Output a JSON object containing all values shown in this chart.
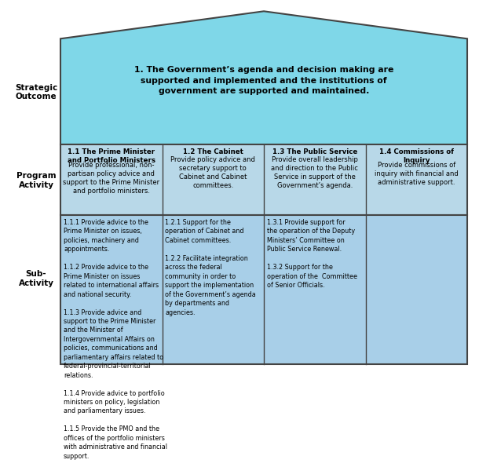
{
  "title": "1. The Government’s agenda and decision making are\nsupported and implemented and the institutions of\ngovernment are supported and maintained.",
  "label_strategic": "Strategic\nOutcome",
  "label_program": "Program\nActivity",
  "label_sub": "Sub-\nActivity",
  "bg_color": "#ffffff",
  "house_fill": "#7fd7e8",
  "program_header_fill": "#b8d8e8",
  "sub_activity_fill": "#a8cfe8",
  "border_color": "#444444",
  "program_headers": [
    {
      "bold": "1.1 The Prime Minister\nand Portfolio Ministers",
      "text": "Provide professional, non-\npartisan policy advice and\nsupport to the Prime Minister\nand portfolio ministers."
    },
    {
      "bold": "1.2 The Cabinet",
      "text": "Provide policy advice and\nsecretary support to\nCabinet and Cabinet\ncommittees."
    },
    {
      "bold": "1.3 The Public Service",
      "text": "Provide overall leadership\nand direction to the Public\nService in support of the\nGovernment’s agenda."
    },
    {
      "bold": "1.4 Commissions of\nInquiry",
      "text": "Provide commissions of\ninquiry with financial and\nadministrative support."
    }
  ],
  "sub_activities": [
    "1.1.1 Provide advice to the\nPrime Minister on issues,\npolicies, machinery and\nappointments.\n\n1.1.2 Provide advice to the\nPrime Minister on issues\nrelated to international affairs\nand national security.\n\n1.1.3 Provide advice and\nsupport to the Prime Minister\nand the Minister of\nIntergovernmental Affairs on\npolicies, communications and\nparliamentary affairs related to\nfederal-provincial-territorial\nrelations.\n\n1.1.4 Provide advice to portfolio\nministers on policy, legislation\nand parliamentary issues.\n\n1.1.5 Provide the PMO and the\noffices of the portfolio ministers\nwith administrative and financial\nsupport.",
    "1.2.1 Support for the\noperation of Cabinet and\nCabinet committees.\n\n1.2.2 Facilitate integration\nacross the federal\ncommunity in order to\nsupport the implementation\nof the Government’s agenda\nby departments and\nagencies.",
    "1.3.1 Provide support for\nthe operation of the Deputy\nMinisters’ Committee on\nPublic Service Renewal.\n\n1.3.2 Support for the\noperation of the  Committee\nof Senior Officials.",
    ""
  ]
}
